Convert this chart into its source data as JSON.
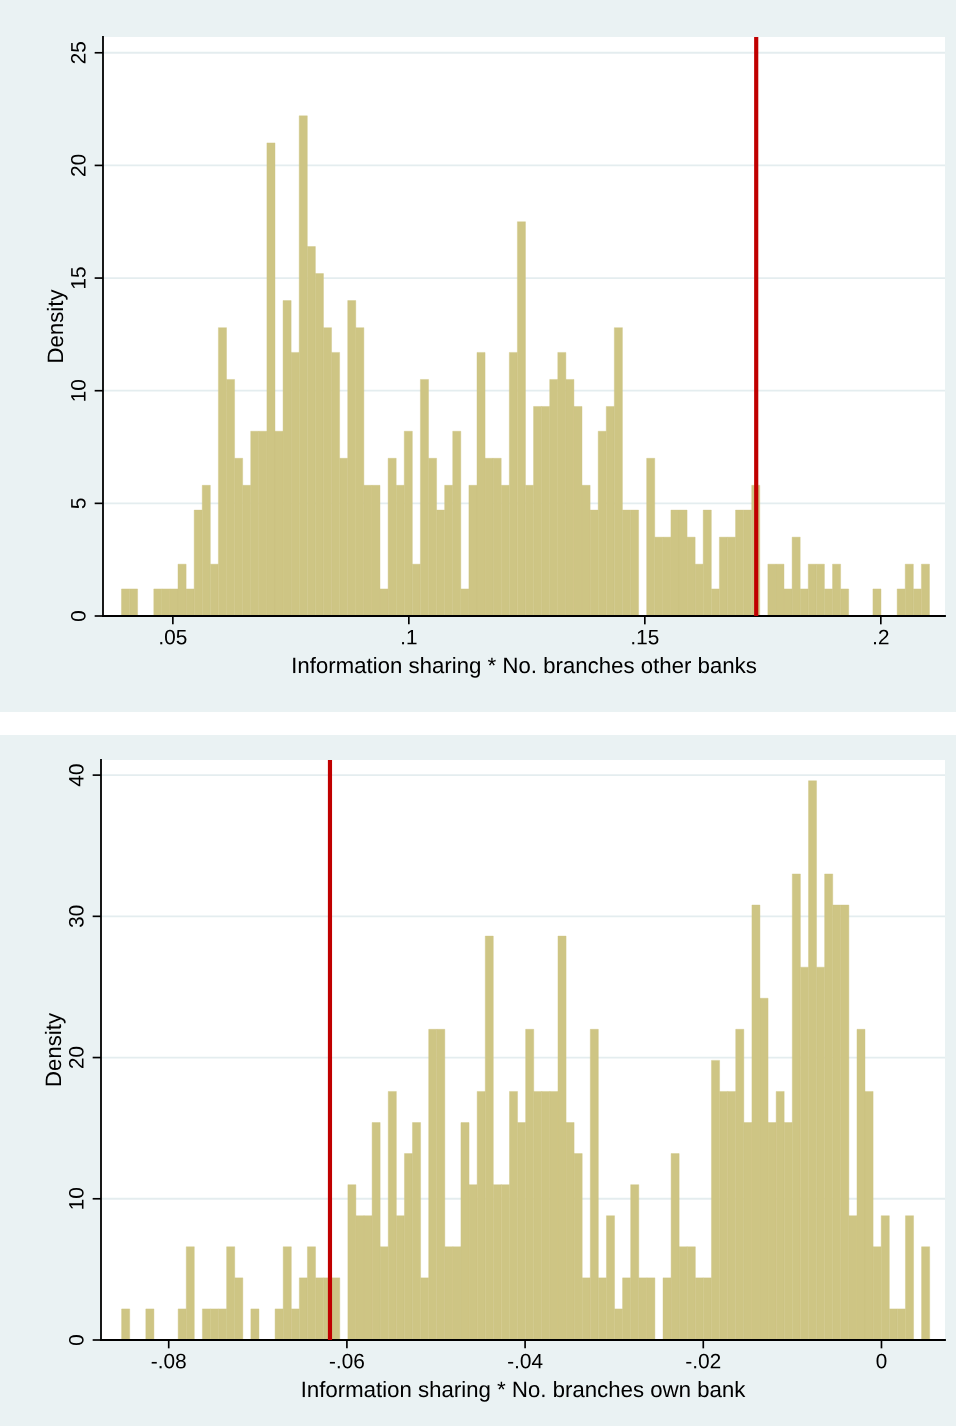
{
  "chart_data": [
    {
      "type": "histogram",
      "xlabel": "Information sharing * No. branches other banks",
      "ylabel": "Density",
      "color": "#cec584",
      "grid": "y",
      "bins": [
        0.03911,
        0.04082,
        0.04253,
        0.04425,
        0.04596,
        0.04767,
        0.04938,
        0.05109,
        0.05281,
        0.05452,
        0.05623,
        0.05794,
        0.05965,
        0.06137,
        0.06308,
        0.06479,
        0.0665,
        0.06821,
        0.06993,
        0.07164,
        0.07335,
        0.07506,
        0.07677,
        0.07849,
        0.0802,
        0.08191,
        0.08362,
        0.08533,
        0.08705,
        0.08876,
        0.09047,
        0.09218,
        0.09389,
        0.09561,
        0.09732,
        0.09903,
        0.10074,
        0.10245,
        0.10417,
        0.10588,
        0.10759,
        0.1093,
        0.11101,
        0.11273,
        0.11444,
        0.11615,
        0.11786,
        0.11957,
        0.12129,
        0.123,
        0.12471,
        0.12642,
        0.12813,
        0.12985,
        0.13156,
        0.13327,
        0.13498,
        0.13669,
        0.13841,
        0.14012,
        0.14183,
        0.14354,
        0.14525,
        0.14697,
        0.14868,
        0.15039,
        0.1521,
        0.15381,
        0.15553,
        0.15724,
        0.15895,
        0.16066,
        0.16237,
        0.16409,
        0.1658,
        0.16751,
        0.16922,
        0.17093,
        0.17265,
        0.17436,
        0.17607,
        0.17778,
        0.17949,
        0.18121,
        0.18292,
        0.18463,
        0.18634,
        0.18805,
        0.18977,
        0.19148,
        0.19319,
        0.1949,
        0.19661,
        0.19833,
        0.20004,
        0.20175,
        0.20346,
        0.20517,
        0.20689,
        0.2086,
        0.21031
      ],
      "values": [
        1.2,
        1.2,
        0,
        0,
        1.2,
        1.2,
        1.2,
        2.3,
        1.2,
        4.7,
        5.8,
        2.3,
        12.8,
        10.5,
        7.0,
        5.8,
        8.2,
        8.2,
        21.0,
        8.2,
        14.0,
        11.7,
        22.2,
        16.4,
        15.2,
        12.8,
        11.7,
        7.0,
        14.0,
        12.8,
        5.8,
        5.8,
        1.2,
        7.0,
        5.8,
        8.2,
        2.3,
        10.5,
        7.0,
        4.7,
        5.8,
        8.2,
        1.2,
        5.8,
        11.7,
        7.0,
        7.0,
        5.8,
        11.7,
        17.5,
        5.8,
        9.3,
        9.3,
        10.5,
        11.7,
        10.5,
        9.3,
        5.8,
        4.7,
        8.2,
        9.3,
        12.8,
        4.7,
        4.7,
        0,
        7.0,
        3.5,
        3.5,
        4.7,
        4.7,
        3.5,
        2.3,
        4.7,
        1.2,
        3.5,
        3.5,
        4.7,
        4.7,
        5.8,
        0,
        2.3,
        2.3,
        1.2,
        3.5,
        1.2,
        2.3,
        2.3,
        1.2,
        2.3,
        1.2,
        0,
        0,
        0,
        1.2,
        0,
        0,
        1.2,
        2.3,
        1.2,
        2.3
      ],
      "xlim": [
        0.0352,
        0.2136
      ],
      "ylim": [
        0,
        25.7
      ],
      "xticks": [
        {
          "value": 0.05,
          "label": ".05"
        },
        {
          "value": 0.1,
          "label": ".1"
        },
        {
          "value": 0.15,
          "label": ".15"
        },
        {
          "value": 0.2,
          "label": ".2"
        }
      ],
      "yticks": [
        0,
        5,
        10,
        15,
        20,
        25
      ],
      "ref_lines": [
        {
          "axis": "x",
          "value": 0.1736,
          "color": "#c00000"
        }
      ]
    },
    {
      "type": "histogram",
      "xlabel": "Information sharing * No. branches own bank",
      "ylabel": "Density",
      "color": "#cec584",
      "grid": "y",
      "bins": [
        -0.08529,
        -0.08438,
        -0.08348,
        -0.08257,
        -0.08166,
        -0.08075,
        -0.07985,
        -0.07894,
        -0.07803,
        -0.07713,
        -0.07622,
        -0.07531,
        -0.07441,
        -0.0735,
        -0.07259,
        -0.07168,
        -0.07078,
        -0.06987,
        -0.06896,
        -0.06806,
        -0.06715,
        -0.06624,
        -0.06534,
        -0.06443,
        -0.06352,
        -0.06261,
        -0.06171,
        -0.0608,
        -0.05989,
        -0.05899,
        -0.05808,
        -0.05717,
        -0.05627,
        -0.05536,
        -0.05445,
        -0.05354,
        -0.05264,
        -0.05173,
        -0.05082,
        -0.04992,
        -0.04901,
        -0.0481,
        -0.0472,
        -0.04629,
        -0.04538,
        -0.04447,
        -0.04357,
        -0.04266,
        -0.04175,
        -0.04085,
        -0.03994,
        -0.03903,
        -0.03813,
        -0.03722,
        -0.03631,
        -0.0354,
        -0.0345,
        -0.03359,
        -0.03268,
        -0.03178,
        -0.03087,
        -0.02996,
        -0.02906,
        -0.02815,
        -0.02724,
        -0.02633,
        -0.02543,
        -0.02452,
        -0.02361,
        -0.02271,
        -0.0218,
        -0.02089,
        -0.01999,
        -0.01908,
        -0.01817,
        -0.01726,
        -0.01636,
        -0.01545,
        -0.01454,
        -0.01364,
        -0.01273,
        -0.01182,
        -0.01092,
        -0.01001,
        -0.0091,
        -0.00819,
        -0.00729,
        -0.00638,
        -0.00547,
        -0.00457,
        -0.00366,
        -0.00275,
        -0.00185,
        -0.00094,
        -3e-05,
        0.00088,
        0.00178,
        0.00269,
        0.0036,
        0.0045,
        0.00541
      ],
      "values": [
        2.2,
        0,
        0,
        2.2,
        0,
        0,
        0,
        2.2,
        6.6,
        0,
        2.2,
        2.2,
        2.2,
        6.6,
        4.4,
        0,
        2.2,
        0,
        0,
        2.2,
        6.6,
        2.2,
        4.4,
        6.6,
        4.4,
        4.4,
        4.4,
        0,
        11.0,
        8.8,
        8.8,
        15.4,
        6.6,
        17.6,
        8.8,
        13.2,
        15.4,
        4.4,
        22.0,
        22.0,
        6.6,
        6.6,
        15.4,
        11.0,
        17.6,
        28.6,
        11.0,
        11.0,
        17.6,
        15.4,
        22.0,
        17.6,
        17.6,
        17.6,
        28.6,
        15.4,
        13.2,
        4.4,
        22.0,
        4.4,
        8.8,
        2.2,
        4.4,
        11.0,
        4.4,
        4.4,
        0,
        4.4,
        13.2,
        6.6,
        6.6,
        4.4,
        4.4,
        19.8,
        17.6,
        17.6,
        22.0,
        15.4,
        30.8,
        24.2,
        15.4,
        17.6,
        15.4,
        33.0,
        26.4,
        39.6,
        26.4,
        33.0,
        30.8,
        30.8,
        8.8,
        22.0,
        17.6,
        6.6,
        8.8,
        2.2,
        2.2,
        8.8,
        0,
        6.6
      ],
      "xlim": [
        -0.0876,
        0.00713
      ],
      "ylim": [
        0,
        41.07
      ],
      "xticks": [
        {
          "value": -0.08,
          "label": "-.08"
        },
        {
          "value": -0.06,
          "label": "-.06"
        },
        {
          "value": -0.04,
          "label": "-.04"
        },
        {
          "value": -0.02,
          "label": "-.02"
        },
        0
      ],
      "yticks": [
        0,
        10,
        20,
        30,
        40
      ],
      "ref_lines": [
        {
          "axis": "x",
          "value": -0.0619,
          "color": "#c00000"
        }
      ]
    }
  ]
}
